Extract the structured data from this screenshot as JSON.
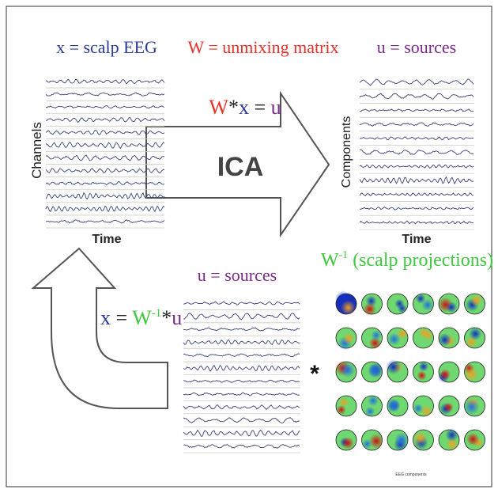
{
  "labels": {
    "eeg_title": "x = scalp EEG",
    "unmix_title": "W = unmixing matrix",
    "sources_title": "u = sources",
    "formula_top": [
      "W",
      "*",
      "x",
      " = ",
      "u"
    ],
    "ica": "ICA",
    "channels": "Channels",
    "time_left": "Time",
    "components": "Components",
    "time_right": "Time",
    "projections": [
      "W",
      "-1",
      " (scalp projections)"
    ],
    "sources_bottom": "u = sources",
    "formula_bottom": [
      "x",
      " = ",
      "W",
      "-1",
      "*",
      "u"
    ],
    "times": "*",
    "topo_caption": "EEG components"
  }
}
